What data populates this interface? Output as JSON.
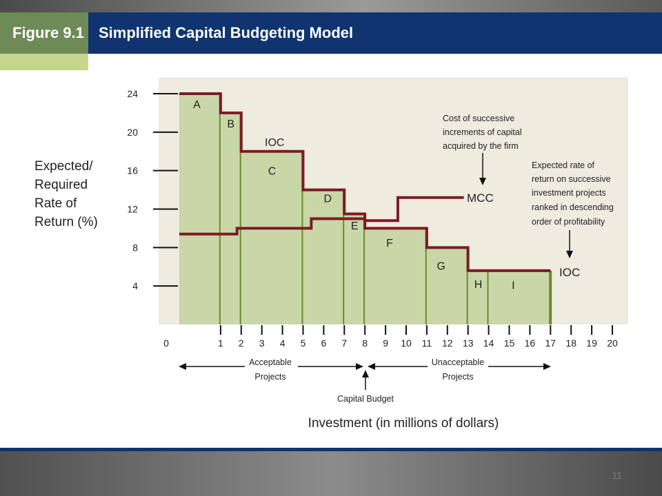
{
  "figure": {
    "label": "Figure 9.1",
    "title": "Simplified Capital Budgeting Model"
  },
  "page_number": "11",
  "colors": {
    "header": "#0f3470",
    "tab": "#6e8a56",
    "tab_accent": "#c7d68c",
    "plot_bg": "#eeebdf",
    "bar_fill": "#c9d7a8",
    "bar_edge": "#6b8a2c",
    "step_line": "#7d1a26"
  },
  "chart_data": {
    "type": "bar",
    "ylabel": [
      "Expected/",
      "Required",
      "Rate of",
      "Return (%)"
    ],
    "xlabel": "Investment (in millions of dollars)",
    "x_ticks": [
      "0",
      "1",
      "2",
      "3",
      "4",
      "5",
      "6",
      "7",
      "8",
      "9",
      "10",
      "11",
      "12",
      "13",
      "14",
      "15",
      "16",
      "17",
      "18",
      "19",
      "20"
    ],
    "y_ticks": [
      "24",
      "20",
      "16",
      "12",
      "8",
      "4"
    ],
    "xlim": [
      0,
      20
    ],
    "ylim": [
      0,
      24
    ],
    "projects": [
      {
        "name": "A",
        "start": 0,
        "end": 2,
        "rate": 24
      },
      {
        "name": "B",
        "start": 2,
        "end": 3,
        "rate": 22
      },
      {
        "name": "C",
        "start": 3,
        "end": 6,
        "rate": 18
      },
      {
        "name": "D",
        "start": 6,
        "end": 8,
        "rate": 14
      },
      {
        "name": "E",
        "start": 8,
        "end": 9,
        "rate": 11.5
      },
      {
        "name": "F",
        "start": 9,
        "end": 12,
        "rate": 10
      },
      {
        "name": "G",
        "start": 12,
        "end": 14,
        "rate": 8
      },
      {
        "name": "H",
        "start": 14,
        "end": 15,
        "rate": 5.6
      },
      {
        "name": "I",
        "start": 15,
        "end": 18,
        "rate": 5.6
      }
    ],
    "mcc": {
      "label": "MCC",
      "points": [
        [
          0,
          9.4
        ],
        [
          2.8,
          9.4
        ],
        [
          2.8,
          10
        ],
        [
          6.4,
          10
        ],
        [
          6.4,
          11
        ],
        [
          9,
          11
        ],
        [
          9,
          10.8
        ],
        [
          10.6,
          10.8
        ],
        [
          10.6,
          13.2
        ],
        [
          13.8,
          13.2
        ]
      ]
    },
    "ioc_labels": [
      "IOC",
      "IOC"
    ],
    "annotations": {
      "mcc_note": [
        "Cost of successive",
        "increments of capital",
        "acquired by the firm"
      ],
      "ioc_note": [
        "Expected rate of",
        "return on successive",
        "investment projects",
        "ranked in descending",
        "order of profitability"
      ],
      "acceptable": [
        "Acceptable",
        "Projects"
      ],
      "unacceptable": [
        "Unacceptable",
        "Projects"
      ],
      "capital_budget": "Capital Budget"
    },
    "capital_budget_at": 9,
    "grid": false
  }
}
